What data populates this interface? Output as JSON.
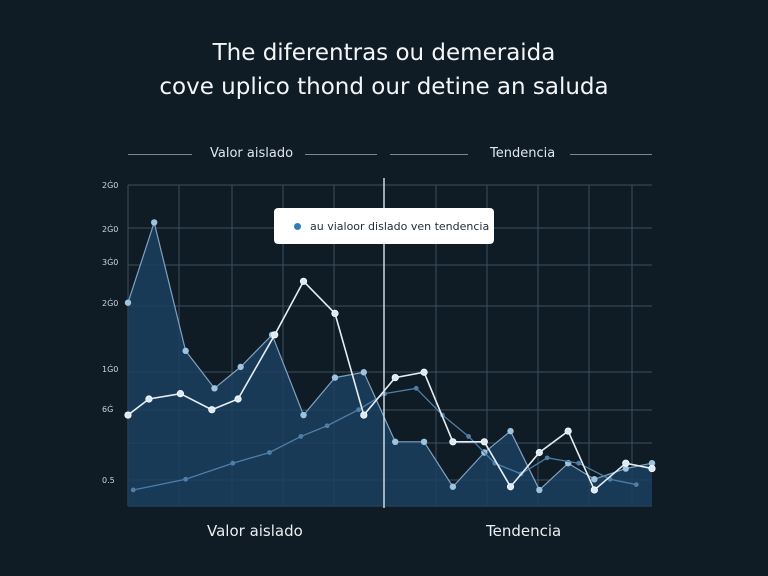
{
  "title_lines": [
    "The diferentras ou demeraida",
    "cove uplico thond our detine an saluda"
  ],
  "section_labels": {
    "left": "Valor aislado",
    "right": "Tendencia"
  },
  "bottom_labels": {
    "left": "Valor aislado",
    "right": "Tendencia"
  },
  "tooltip": {
    "text": "au vialoor dislado ven tendencia"
  },
  "colors": {
    "background": "#0f1b25",
    "area_fill": "#1a4060",
    "primary_line": "#e6eef5",
    "secondary_line": "#4d7fa8",
    "grid": "#3e4f5e"
  },
  "chart_data": {
    "type": "line",
    "title": "The diferentras ou demeraida cove uplico thond our detine an saluda",
    "y_tick_labels": [
      "2Ġ0",
      "2Ġ0",
      "3Ġ0",
      "2Ġ0",
      "1Ġ0",
      "6Ġ",
      "0.5"
    ],
    "ylim": [
      0,
      300
    ],
    "grid": true,
    "series": [
      {
        "role": "area",
        "x": [
          0,
          5,
          11,
          16.5,
          21.5,
          27.5,
          33.5,
          39.5,
          45,
          51,
          56.5,
          62,
          68,
          73,
          78.5,
          84,
          89,
          95,
          100
        ],
        "values": [
          190,
          265,
          145,
          110,
          130,
          160,
          85,
          120,
          125,
          60,
          60,
          18,
          50,
          70,
          15,
          40,
          25,
          35,
          40
        ]
      },
      {
        "role": "primary",
        "x": [
          0,
          4,
          10,
          16,
          21,
          28,
          33.5,
          39.5,
          45,
          51,
          56.5,
          62,
          68,
          73,
          78.5,
          84,
          89,
          95,
          100
        ],
        "values": [
          85,
          100,
          105,
          90,
          100,
          160,
          210,
          180,
          85,
          120,
          125,
          60,
          60,
          18,
          50,
          70,
          15,
          40,
          35
        ]
      },
      {
        "role": "secondary",
        "x": [
          1,
          11,
          20,
          27,
          33,
          38,
          44,
          49,
          55,
          60,
          65,
          70,
          75,
          80,
          86,
          92,
          97
        ],
        "values": [
          15,
          25,
          40,
          50,
          65,
          75,
          90,
          105,
          110,
          85,
          65,
          40,
          30,
          45,
          40,
          25,
          20
        ]
      }
    ]
  }
}
